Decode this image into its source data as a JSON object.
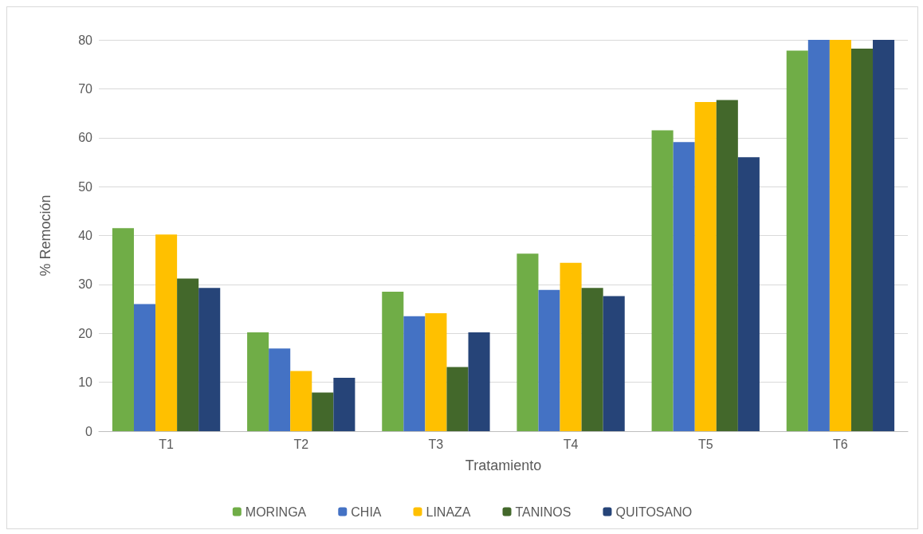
{
  "chart_data": {
    "type": "bar",
    "xlabel": "Tratamiento",
    "ylabel": "% Remoción",
    "categories": [
      "T1",
      "T2",
      "T3",
      "T4",
      "T5",
      "T6"
    ],
    "series": [
      {
        "name": "MORINGA",
        "color": "#70ad47",
        "values": [
          41.5,
          20.2,
          28.5,
          36.3,
          61.5,
          77.8
        ]
      },
      {
        "name": "CHIA",
        "color": "#4472c4",
        "values": [
          26.0,
          16.9,
          23.5,
          28.9,
          59.1,
          80
        ]
      },
      {
        "name": "LINAZA",
        "color": "#ffc000",
        "values": [
          40.2,
          12.3,
          24.1,
          34.4,
          67.3,
          80
        ]
      },
      {
        "name": "TANINOS",
        "color": "#43682b",
        "values": [
          31.2,
          7.9,
          13.1,
          29.3,
          67.7,
          78.2
        ]
      },
      {
        "name": "QUITOSANO",
        "color": "#264478",
        "values": [
          29.3,
          10.9,
          20.2,
          27.6,
          56.0,
          80
        ]
      }
    ],
    "ylim": [
      0,
      80
    ],
    "yticks": [
      0,
      10,
      20,
      30,
      40,
      50,
      60,
      70,
      80
    ],
    "grid": "y",
    "legend": "bottom"
  }
}
